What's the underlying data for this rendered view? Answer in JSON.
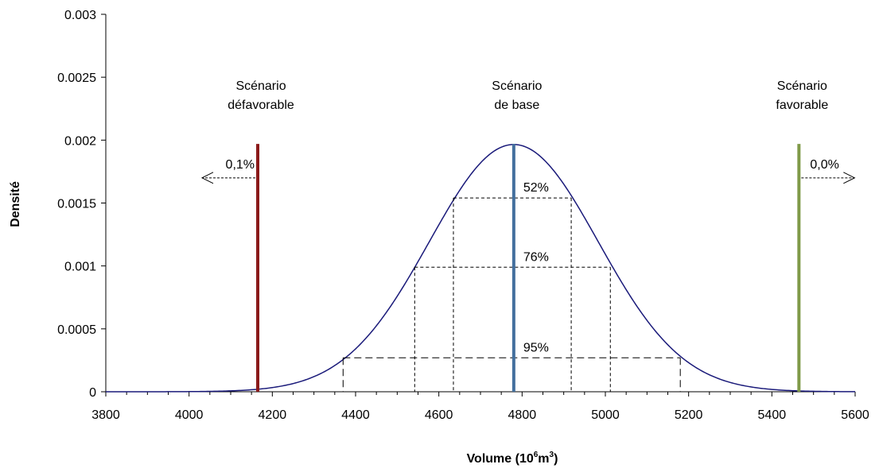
{
  "chart_data": {
    "type": "line",
    "title": "",
    "xlabel": "Volume (10",
    "xlabel_sup1": "6",
    "xlabel_mid": "m",
    "xlabel_sup2": "3",
    "xlabel_end": ")",
    "ylabel": "Densité",
    "xlim": [
      3800,
      5600
    ],
    "ylim": [
      0,
      0.003
    ],
    "x_ticks": [
      3800,
      4000,
      4200,
      4400,
      4600,
      4800,
      5000,
      5200,
      5400,
      5600
    ],
    "x_tick_labels": [
      "3800",
      "4000",
      "4200",
      "4400",
      "4600",
      "4800",
      "5000",
      "5200",
      "5400",
      "5600"
    ],
    "y_ticks": [
      0,
      0.0005,
      0.001,
      0.0015,
      0.002,
      0.0025,
      0.003
    ],
    "y_tick_labels": [
      "0",
      "0.0005",
      "0.001",
      "0.0015",
      "0.002",
      "0.0025",
      "0.003"
    ],
    "grid": false,
    "distribution": {
      "kind": "normal",
      "mean": 4780,
      "sd": 203
    },
    "colors": {
      "curve": "#1a1a7a",
      "unfavorable": "#8b1a1a",
      "base": "#44709e",
      "favorable": "#7f9a48",
      "guide": "#000000"
    },
    "scenarios": [
      {
        "key": "unfavorable",
        "x": 4165,
        "y_top": 0.00197,
        "label_lines": [
          "Scénario",
          "défavorable"
        ],
        "prob": "0,1%",
        "arrow": "left"
      },
      {
        "key": "base",
        "x": 4780,
        "y_top": 0.00197,
        "label_lines": [
          "Scénario",
          "de base"
        ],
        "prob": "",
        "arrow": "none"
      },
      {
        "key": "favorable",
        "x": 5465,
        "y_top": 0.00197,
        "label_lines": [
          "Scénario",
          "favorable"
        ],
        "prob": "0,0%",
        "arrow": "right"
      }
    ],
    "intervals": [
      {
        "label": "52%",
        "x_low": 4635,
        "x_high": 4918,
        "y": 0.00154
      },
      {
        "label": "76%",
        "x_low": 4542,
        "x_high": 5012,
        "y": 0.00099
      },
      {
        "label": "95%",
        "x_low": 4370,
        "x_high": 5180,
        "y": 0.00027
      }
    ]
  }
}
